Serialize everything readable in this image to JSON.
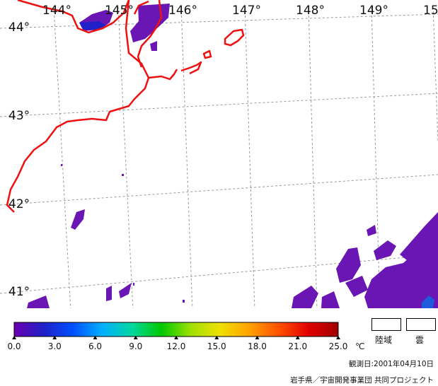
{
  "map": {
    "longitude_labels": [
      "144°",
      "145°",
      "146°",
      "147°",
      "148°",
      "149°",
      "15"
    ],
    "latitude_labels": [
      "44°",
      "43°",
      "42°",
      "41°"
    ],
    "colors": {
      "coastline": "#ee1111",
      "grid": "#999999",
      "sst_low": "#6a16b4"
    }
  },
  "colorbar": {
    "ticks": [
      "0.0",
      "3.0",
      "6.0",
      "9.0",
      "12.0",
      "15.0",
      "18.0",
      "21.0",
      "25.0"
    ],
    "unit": "℃",
    "gradient": [
      "#6a00b0",
      "#2020c8",
      "#0050ff",
      "#00b0ff",
      "#00d8a0",
      "#00c800",
      "#a0e000",
      "#f0e000",
      "#ffa000",
      "#ff5000",
      "#e00000",
      "#a00000"
    ]
  },
  "legend": {
    "land_label": "陸域",
    "cloud_label": "雲"
  },
  "footer": {
    "observation_date": "観測日:2001年04月10日",
    "credit": "岩手県／宇宙開発事業団 共同プロジェクト"
  }
}
